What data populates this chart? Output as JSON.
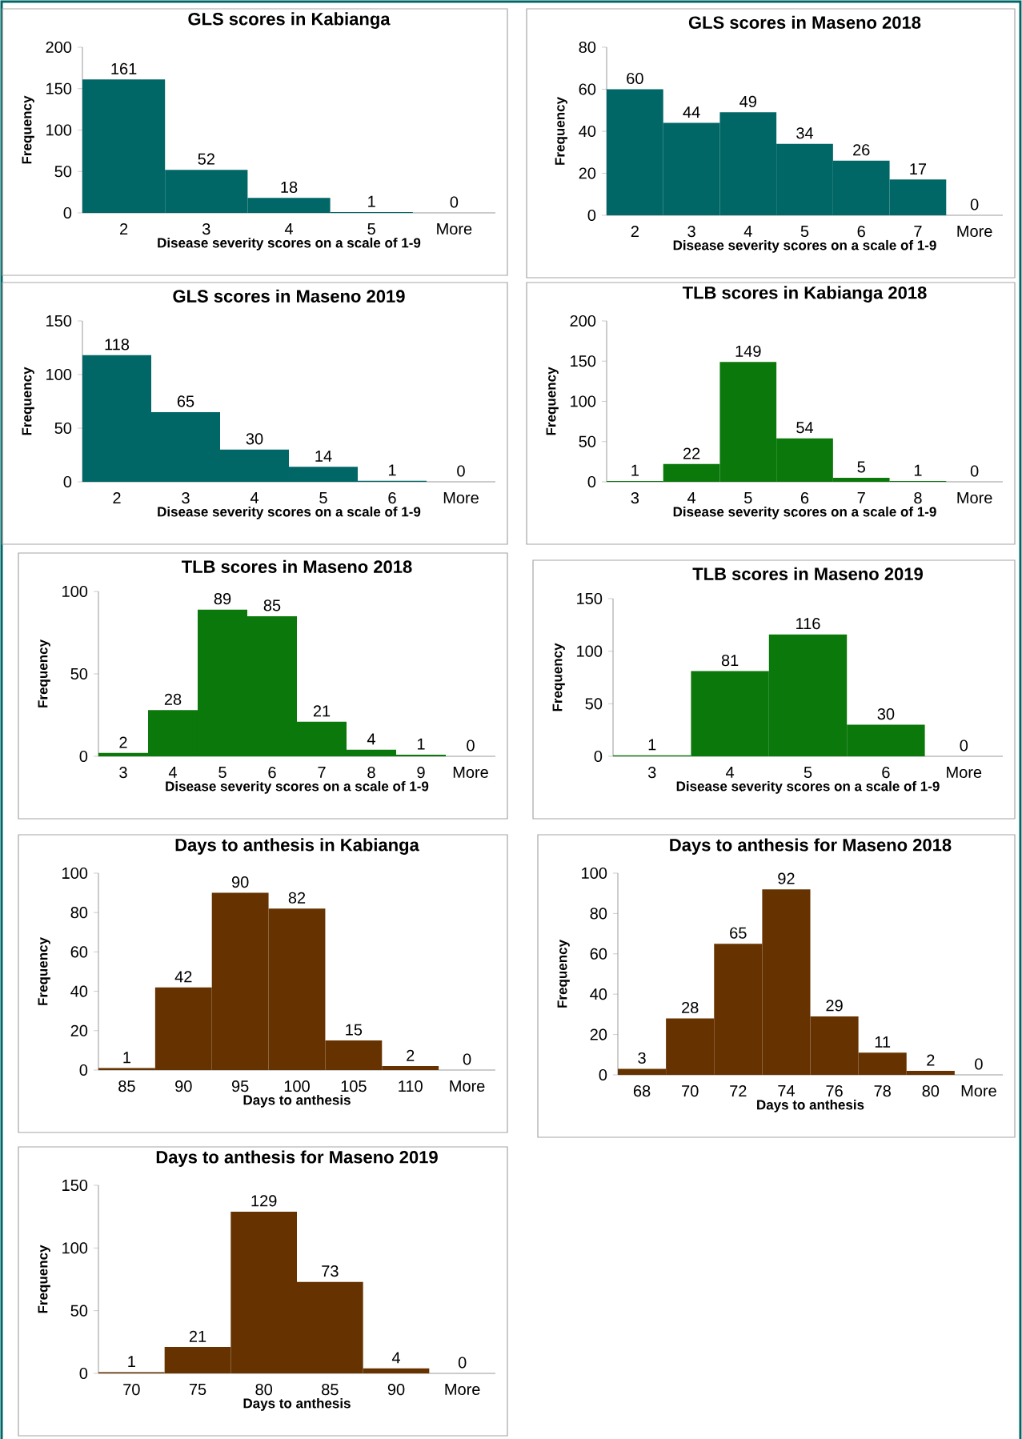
{
  "chart_data": [
    {
      "type": "bar",
      "title": "GLS scores in Kabianga",
      "xlabel": "Disease severity scores on a scale of 1-9",
      "ylabel": "Frequency",
      "categories": [
        "2",
        "3",
        "4",
        "5",
        "More"
      ],
      "values": [
        161,
        52,
        18,
        1,
        0
      ],
      "color": "#006666",
      "ylim": [
        0,
        200
      ],
      "yticks": [
        0,
        50,
        100,
        150,
        200
      ],
      "data_labels": true
    },
    {
      "type": "bar",
      "title": "GLS scores in Maseno 2018",
      "xlabel": "Disease severity scores on a scale of 1-9",
      "ylabel": "Frequency",
      "categories": [
        "2",
        "3",
        "4",
        "5",
        "6",
        "7",
        "More"
      ],
      "values": [
        60,
        44,
        49,
        34,
        26,
        17,
        0
      ],
      "color": "#006666",
      "ylim": [
        0,
        80
      ],
      "yticks": [
        0,
        20,
        40,
        60,
        80
      ],
      "data_labels": true
    },
    {
      "type": "bar",
      "title": "GLS scores in Maseno 2019",
      "xlabel": "Disease severity scores on a scale of 1-9",
      "ylabel": "Frequency",
      "categories": [
        "2",
        "3",
        "4",
        "5",
        "6",
        "More"
      ],
      "values": [
        118,
        65,
        30,
        14,
        1,
        0
      ],
      "color": "#006666",
      "ylim": [
        0,
        150
      ],
      "yticks": [
        0,
        50,
        100,
        150
      ],
      "data_labels": true
    },
    {
      "type": "bar",
      "title": "TLB scores in Kabianga 2018",
      "xlabel": "Disease severity scores on a scale of 1-9",
      "ylabel": "Frequency",
      "categories": [
        "3",
        "4",
        "5",
        "6",
        "7",
        "8",
        "More"
      ],
      "values": [
        1,
        22,
        149,
        54,
        5,
        1,
        0
      ],
      "color": "#0b780b",
      "ylim": [
        0,
        200
      ],
      "yticks": [
        0,
        50,
        100,
        150,
        200
      ],
      "data_labels": true
    },
    {
      "type": "bar",
      "title": "TLB scores in Maseno 2018",
      "xlabel": "Disease severity scores on a scale of 1-9",
      "ylabel": "Frequency",
      "categories": [
        "3",
        "4",
        "5",
        "6",
        "7",
        "8",
        "9",
        "More"
      ],
      "values": [
        2,
        28,
        89,
        85,
        21,
        4,
        1,
        0
      ],
      "color": "#0b780b",
      "ylim": [
        0,
        100
      ],
      "yticks": [
        0,
        50,
        100
      ],
      "data_labels": true
    },
    {
      "type": "bar",
      "title": "TLB scores in Maseno 2019",
      "xlabel": "Disease severity scores on a scale of 1-9",
      "ylabel": "Frequency",
      "categories": [
        "3",
        "4",
        "5",
        "6",
        "More"
      ],
      "values": [
        1,
        81,
        116,
        30,
        0
      ],
      "color": "#0b780b",
      "ylim": [
        0,
        150
      ],
      "yticks": [
        0,
        50,
        100,
        150
      ],
      "data_labels": true
    },
    {
      "type": "bar",
      "title": "Days to anthesis in Kabianga",
      "xlabel": "Days to anthesis",
      "ylabel": "Frequency",
      "categories": [
        "85",
        "90",
        "95",
        "100",
        "105",
        "110",
        "More"
      ],
      "values": [
        1,
        42,
        90,
        82,
        15,
        2,
        0
      ],
      "color": "#663300",
      "ylim": [
        0,
        100
      ],
      "yticks": [
        0,
        20,
        40,
        60,
        80,
        100
      ],
      "data_labels": true
    },
    {
      "type": "bar",
      "title": "Days to anthesis for Maseno 2018",
      "xlabel": "Days to anthesis",
      "ylabel": "Frequency",
      "categories": [
        "68",
        "70",
        "72",
        "74",
        "76",
        "78",
        "80",
        "More"
      ],
      "values": [
        3,
        28,
        65,
        92,
        29,
        11,
        2,
        0
      ],
      "color": "#663300",
      "ylim": [
        0,
        100
      ],
      "yticks": [
        0,
        20,
        40,
        60,
        80,
        100
      ],
      "data_labels": true
    },
    {
      "type": "bar",
      "title": "Days to anthesis for Maseno 2019",
      "xlabel": "Days to anthesis",
      "ylabel": "Frequency",
      "categories": [
        "70",
        "75",
        "80",
        "85",
        "90",
        "More"
      ],
      "values": [
        1,
        21,
        129,
        73,
        4,
        0
      ],
      "color": "#663300",
      "ylim": [
        0,
        150
      ],
      "yticks": [
        0,
        50,
        100,
        150
      ],
      "data_labels": true
    }
  ]
}
